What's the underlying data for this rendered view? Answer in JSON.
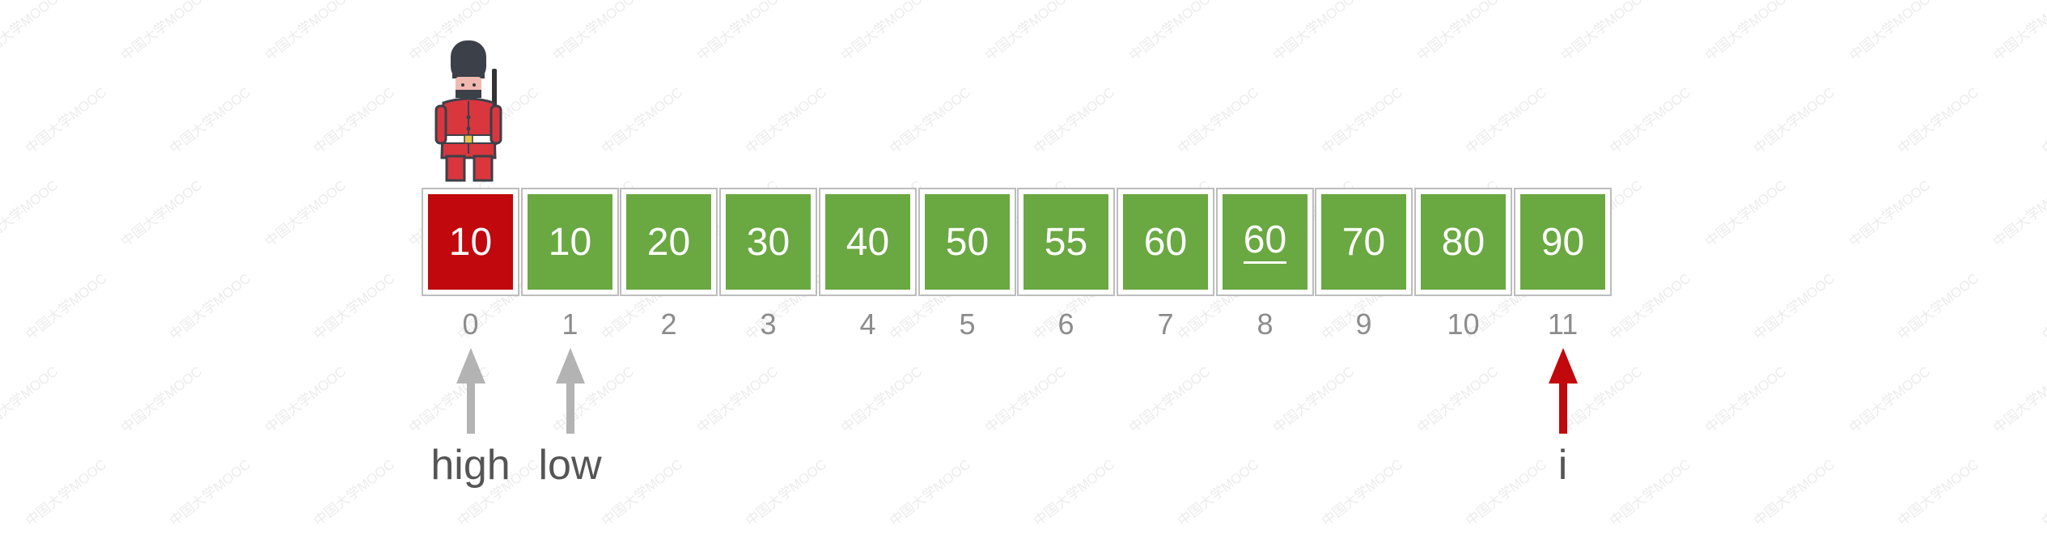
{
  "watermark": "中国大学MOOC",
  "cells": [
    {
      "value": "10",
      "index": "0",
      "color": "red",
      "underline": false
    },
    {
      "value": "10",
      "index": "1",
      "color": "green",
      "underline": false
    },
    {
      "value": "20",
      "index": "2",
      "color": "green",
      "underline": false
    },
    {
      "value": "30",
      "index": "3",
      "color": "green",
      "underline": false
    },
    {
      "value": "40",
      "index": "4",
      "color": "green",
      "underline": false
    },
    {
      "value": "50",
      "index": "5",
      "color": "green",
      "underline": false
    },
    {
      "value": "55",
      "index": "6",
      "color": "green",
      "underline": false
    },
    {
      "value": "60",
      "index": "7",
      "color": "green",
      "underline": false
    },
    {
      "value": "60",
      "index": "8",
      "color": "green",
      "underline": true
    },
    {
      "value": "70",
      "index": "9",
      "color": "green",
      "underline": false
    },
    {
      "value": "80",
      "index": "10",
      "color": "green",
      "underline": false
    },
    {
      "value": "90",
      "index": "11",
      "color": "green",
      "underline": false
    }
  ],
  "pointers": [
    {
      "label": "high",
      "cell": 0,
      "color": "#b3b3b3"
    },
    {
      "label": "low",
      "cell": 1,
      "color": "#b3b3b3"
    },
    {
      "label": "i",
      "cell": 11,
      "color": "#c0080d"
    }
  ],
  "guard": {
    "icon": "guard-icon",
    "cell": 0
  },
  "colors": {
    "green": "#6aa842",
    "red": "#c0080d",
    "border": "#bdbdbd",
    "index_text": "#8c8c8c"
  }
}
